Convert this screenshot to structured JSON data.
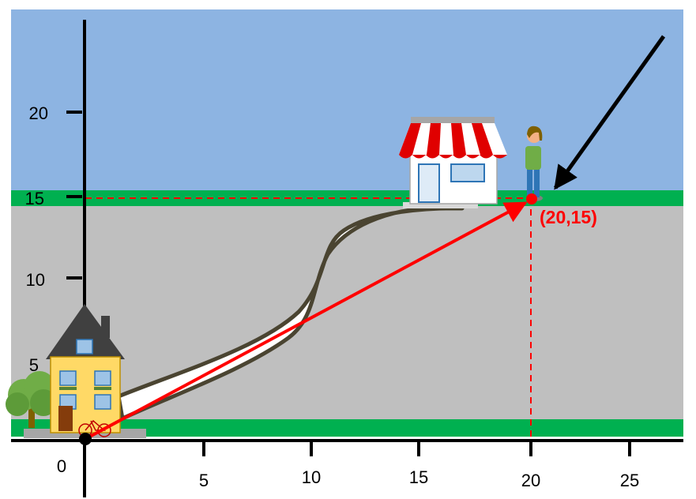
{
  "diagram": {
    "y_ticks": [
      {
        "value": 5,
        "label": "5"
      },
      {
        "value": 10,
        "label": "10"
      },
      {
        "value": 15,
        "label": "15"
      },
      {
        "value": 20,
        "label": "20"
      }
    ],
    "x_ticks": [
      {
        "value": 5,
        "label": "5"
      },
      {
        "value": 10,
        "label": "10"
      },
      {
        "value": 15,
        "label": "15"
      },
      {
        "value": 20,
        "label": "20"
      },
      {
        "value": 25,
        "label": "25"
      }
    ],
    "origin_label": "0",
    "point": {
      "x": 20,
      "y": 15,
      "label": "(20,15)"
    },
    "colors": {
      "sky": "#8db4e2",
      "road": "#bfbfbf",
      "grass": "#00b050",
      "vector": "#ff0000",
      "guide": "#ff0000",
      "axis": "#000000",
      "path": "#ffffff",
      "path_edge": "#4a4431"
    },
    "icons": {
      "house": "house-icon",
      "tree": "tree-icon",
      "bicycle": "bicycle-icon",
      "store": "store-icon",
      "person": "person-icon",
      "pointer": "arrow-pointer-icon"
    }
  }
}
